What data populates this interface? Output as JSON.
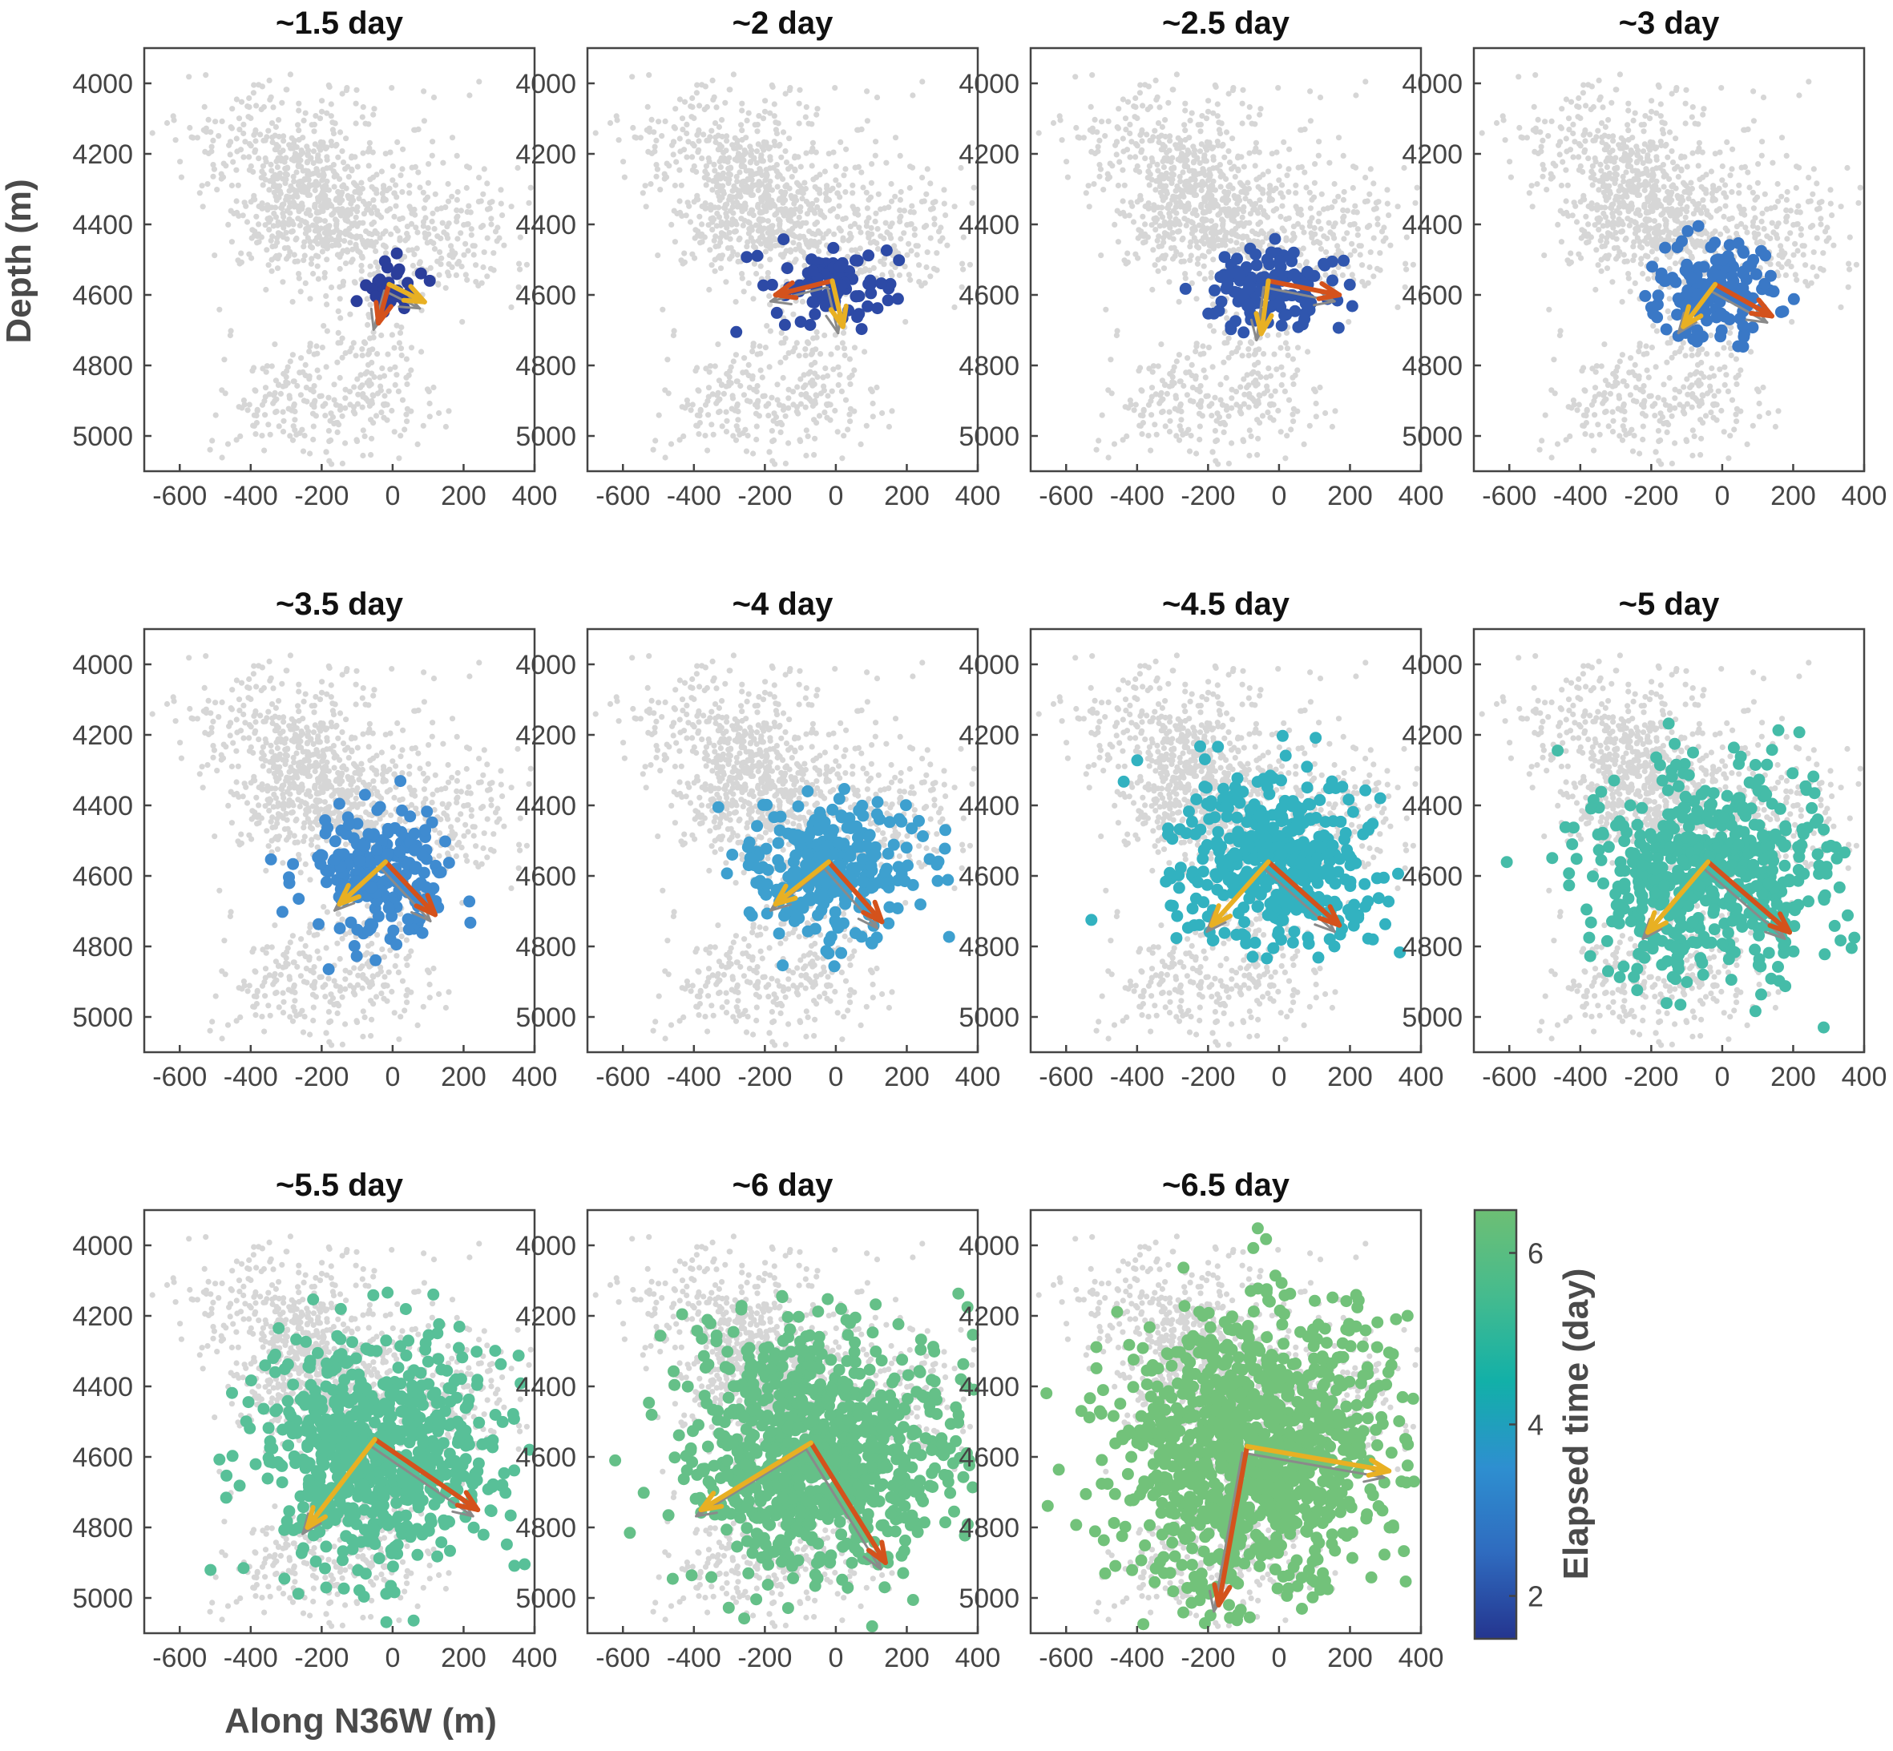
{
  "chart_data": {
    "type": "scatter",
    "xlabel": "Along N36W (m)",
    "ylabel": "Depth (m)",
    "xlim": [
      -700,
      400
    ],
    "ylim": [
      5100,
      3900
    ],
    "xticks": [
      -600,
      -400,
      -200,
      0,
      200,
      400
    ],
    "yticks": [
      4000,
      4200,
      4400,
      4600,
      4800,
      5000
    ],
    "background_color": "#d6d6d6",
    "colorbar": {
      "label": "Elapsed time (day)",
      "range": [
        1.5,
        6.5
      ],
      "ticks": [
        2,
        4,
        6
      ],
      "colors": [
        "#24358f",
        "#2f6bbf",
        "#2e8fd0",
        "#12b0a8",
        "#45bb8e",
        "#6dbf74"
      ]
    },
    "arrow_colors": {
      "arrow1": "#d4521c",
      "arrow2": "#e8b023",
      "reference": "#8a8a8a"
    },
    "panels": [
      {
        "title": "~1.5 day",
        "time": 1.5,
        "color": "#2b3e9b",
        "center": [
          0,
          4570
        ],
        "spread": [
          40,
          40
        ],
        "count": 35,
        "arrows": [
          {
            "from": [
              -10,
              4570
            ],
            "to": [
              -40,
              4680
            ],
            "color": "arrow1"
          },
          {
            "from": [
              -10,
              4570
            ],
            "to": [
              90,
              4620
            ],
            "color": "arrow2"
          }
        ]
      },
      {
        "title": "~2 day",
        "time": 2,
        "color": "#2d4aa6",
        "center": [
          -30,
          4560
        ],
        "spread": [
          90,
          55
        ],
        "count": 90,
        "arrows": [
          {
            "from": [
              -10,
              4560
            ],
            "to": [
              -170,
              4600
            ],
            "color": "arrow1"
          },
          {
            "from": [
              -10,
              4560
            ],
            "to": [
              20,
              4690
            ],
            "color": "arrow2"
          }
        ]
      },
      {
        "title": "~2.5 day",
        "time": 2.5,
        "color": "#3056ae",
        "center": [
          -30,
          4580
        ],
        "spread": [
          95,
          60
        ],
        "count": 130,
        "arrows": [
          {
            "from": [
              -30,
              4560
            ],
            "to": [
              170,
              4600
            ],
            "color": "arrow1"
          },
          {
            "from": [
              -30,
              4560
            ],
            "to": [
              -50,
              4710
            ],
            "color": "arrow2"
          }
        ]
      },
      {
        "title": "~3 day",
        "time": 3,
        "color": "#3a78c6",
        "center": [
          -30,
          4590
        ],
        "spread": [
          95,
          65
        ],
        "count": 160,
        "arrows": [
          {
            "from": [
              -20,
              4570
            ],
            "to": [
              140,
              4660
            ],
            "color": "arrow1"
          },
          {
            "from": [
              -20,
              4570
            ],
            "to": [
              -110,
              4690
            ],
            "color": "arrow2"
          }
        ]
      },
      {
        "title": "~3.5 day",
        "time": 3.5,
        "color": "#3f8bd0",
        "center": [
          -30,
          4590
        ],
        "spread": [
          105,
          90
        ],
        "count": 230,
        "arrows": [
          {
            "from": [
              -20,
              4560
            ],
            "to": [
              120,
              4710
            ],
            "color": "arrow1"
          },
          {
            "from": [
              -20,
              4560
            ],
            "to": [
              -150,
              4680
            ],
            "color": "arrow2"
          }
        ]
      },
      {
        "title": "~4 day",
        "time": 4,
        "color": "#3ea0cf",
        "center": [
          -20,
          4580
        ],
        "spread": [
          115,
          95
        ],
        "count": 280,
        "arrows": [
          {
            "from": [
              -20,
              4560
            ],
            "to": [
              130,
              4730
            ],
            "color": "arrow1"
          },
          {
            "from": [
              -20,
              4560
            ],
            "to": [
              -170,
              4680
            ],
            "color": "arrow2"
          }
        ]
      },
      {
        "title": "~4.5 day",
        "time": 4.5,
        "color": "#32b2c0",
        "center": [
          -20,
          4560
        ],
        "spread": [
          150,
          125
        ],
        "count": 420,
        "arrows": [
          {
            "from": [
              -30,
              4560
            ],
            "to": [
              170,
              4740
            ],
            "color": "arrow1"
          },
          {
            "from": [
              -30,
              4560
            ],
            "to": [
              -190,
              4740
            ],
            "color": "arrow2"
          }
        ]
      },
      {
        "title": "~5 day",
        "time": 5,
        "color": "#45bca8",
        "center": [
          -40,
          4590
        ],
        "spread": [
          170,
          150
        ],
        "count": 560,
        "arrows": [
          {
            "from": [
              -40,
              4560
            ],
            "to": [
              190,
              4760
            ],
            "color": "arrow1"
          },
          {
            "from": [
              -40,
              4560
            ],
            "to": [
              -210,
              4760
            ],
            "color": "arrow2"
          }
        ]
      },
      {
        "title": "~5.5 day",
        "time": 5.5,
        "color": "#58c098",
        "center": [
          -30,
          4580
        ],
        "spread": [
          175,
          160
        ],
        "count": 700,
        "arrows": [
          {
            "from": [
              -50,
              4550
            ],
            "to": [
              240,
              4750
            ],
            "color": "arrow1"
          },
          {
            "from": [
              -50,
              4550
            ],
            "to": [
              -240,
              4800
            ],
            "color": "arrow2"
          }
        ]
      },
      {
        "title": "~6 day",
        "time": 6,
        "color": "#65c088",
        "center": [
          -40,
          4590
        ],
        "spread": [
          190,
          170
        ],
        "count": 900,
        "arrows": [
          {
            "from": [
              -70,
              4560
            ],
            "to": [
              140,
              4900
            ],
            "color": "arrow1"
          },
          {
            "from": [
              -70,
              4560
            ],
            "to": [
              -380,
              4750
            ],
            "color": "arrow2"
          }
        ]
      },
      {
        "title": "~6.5 day",
        "time": 6.5,
        "color": "#72c27a",
        "center": [
          -70,
          4580
        ],
        "spread": [
          190,
          190
        ],
        "count": 1100,
        "arrows": [
          {
            "from": [
              -90,
              4570
            ],
            "to": [
              -170,
              5020
            ],
            "color": "arrow1"
          },
          {
            "from": [
              -90,
              4570
            ],
            "to": [
              310,
              4640
            ],
            "color": "arrow2"
          }
        ]
      }
    ]
  }
}
